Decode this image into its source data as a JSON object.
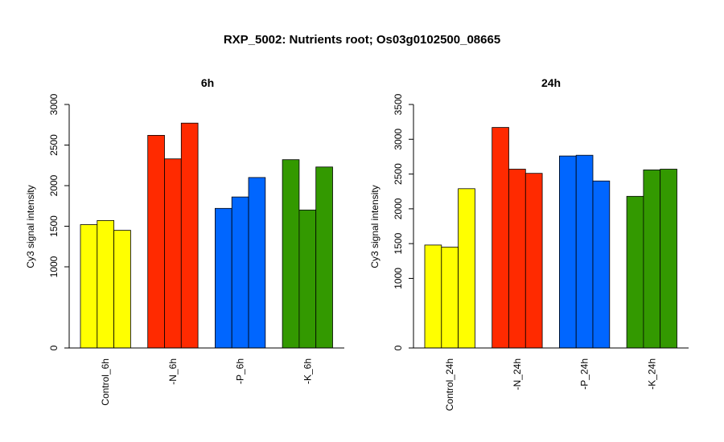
{
  "title": "RXP_5002: Nutrients root; Os03g0102500_08665",
  "chart_data": [
    {
      "type": "bar",
      "title": "6h",
      "ylabel": "Cy3 signal intensity",
      "ylim": [
        0,
        3000
      ],
      "yticks": [
        0,
        1000,
        1500,
        2000,
        2500,
        3000
      ],
      "groups": [
        {
          "label": "Control_6h",
          "color": "#ffff00",
          "values": [
            1520,
            1570,
            1450
          ]
        },
        {
          "label": "-N_6h",
          "color": "#ff2a00",
          "values": [
            2620,
            2330,
            2770
          ]
        },
        {
          "label": "-P_6h",
          "color": "#0066ff",
          "values": [
            1720,
            1860,
            2100
          ]
        },
        {
          "label": "-K_6h",
          "color": "#339900",
          "values": [
            2320,
            1700,
            2230
          ]
        }
      ]
    },
    {
      "type": "bar",
      "title": "24h",
      "ylabel": "Cy3 signal intensity",
      "ylim": [
        0,
        3500
      ],
      "yticks": [
        0,
        1000,
        1500,
        2000,
        2500,
        3000,
        3500
      ],
      "groups": [
        {
          "label": "Control_24h",
          "color": "#ffff00",
          "values": [
            1480,
            1450,
            2290
          ]
        },
        {
          "label": "-N_24h",
          "color": "#ff2a00",
          "values": [
            3170,
            2570,
            2510
          ]
        },
        {
          "label": "-P_24h",
          "color": "#0066ff",
          "values": [
            2760,
            2770,
            2400
          ]
        },
        {
          "label": "-K_24h",
          "color": "#339900",
          "values": [
            2180,
            2560,
            2570
          ]
        }
      ]
    }
  ]
}
